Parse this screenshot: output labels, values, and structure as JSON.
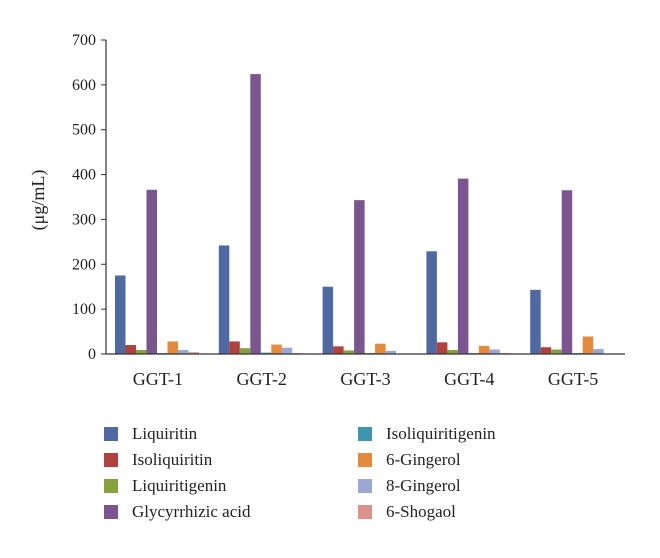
{
  "chart_data": {
    "type": "bar",
    "title": "",
    "xlabel": "",
    "ylabel": "(μg/mL)",
    "ylim": [
      0,
      700
    ],
    "yticks": [
      0,
      100,
      200,
      300,
      400,
      500,
      600,
      700
    ],
    "grid": false,
    "legend_position": "bottom",
    "categories": [
      "GGT-1",
      "GGT-2",
      "GGT-3",
      "GGT-4",
      "GGT-5"
    ],
    "series": [
      {
        "name": "Liquiritin",
        "color": "#4f6aa3",
        "values": [
          175,
          242,
          150,
          229,
          143
        ]
      },
      {
        "name": "Isoliquiritin",
        "color": "#b0413c",
        "values": [
          20,
          28,
          17,
          26,
          15
        ]
      },
      {
        "name": "Liquiritigenin",
        "color": "#86a23d",
        "values": [
          9,
          13,
          8,
          9,
          10
        ]
      },
      {
        "name": "Glycyrrhizic acid",
        "color": "#7b5490",
        "values": [
          366,
          624,
          343,
          391,
          365
        ]
      },
      {
        "name": "Isoliquiritigenin",
        "color": "#3f95ad",
        "values": [
          2,
          3,
          2,
          2,
          2
        ]
      },
      {
        "name": "6-Gingerol",
        "color": "#e5893b",
        "values": [
          28,
          21,
          23,
          18,
          39
        ]
      },
      {
        "name": "8-Gingerol",
        "color": "#9aa8d3",
        "values": [
          9,
          14,
          7,
          10,
          11
        ]
      },
      {
        "name": "6-Shogaol",
        "color": "#da928c",
        "values": [
          4,
          2,
          1,
          2,
          1
        ]
      }
    ]
  }
}
